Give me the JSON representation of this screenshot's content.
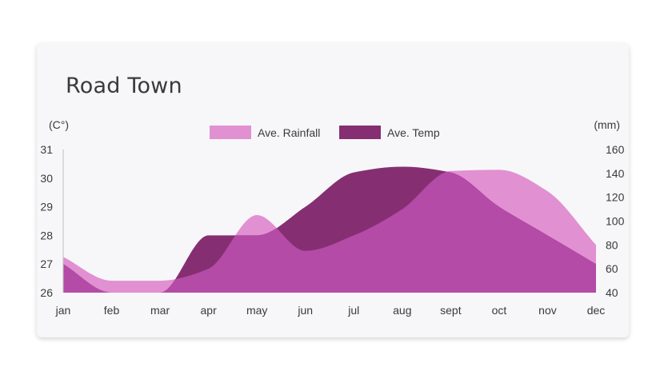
{
  "chart_data": {
    "type": "area",
    "title": "Road Town",
    "categories": [
      "jan",
      "feb",
      "mar",
      "apr",
      "may",
      "jun",
      "jul",
      "aug",
      "sept",
      "oct",
      "nov",
      "dec"
    ],
    "y_left": {
      "unit": "(C°)",
      "range": [
        26,
        31
      ],
      "ticks": [
        "26",
        "27",
        "28",
        "29",
        "30",
        "31"
      ]
    },
    "y_right": {
      "unit": "(mm)",
      "range": [
        40,
        160
      ],
      "ticks": [
        "40",
        "60",
        "80",
        "100",
        "120",
        "140",
        "160"
      ]
    },
    "legend_position": "top-center",
    "series": [
      {
        "name": "Ave. Rainfall",
        "axis": "right",
        "color": "#e190d2",
        "values": [
          70,
          50,
          50,
          60,
          105,
          75,
          88,
          110,
          142,
          143,
          125,
          80
        ]
      },
      {
        "name": "Ave. Temp",
        "axis": "left",
        "color": "#852f72",
        "values": [
          27.0,
          26.0,
          26.0,
          28.0,
          28.0,
          29.0,
          30.2,
          30.4,
          30.2,
          29.0,
          28.0,
          27.0
        ]
      }
    ],
    "overlap_color": "#b44ba6",
    "grid": false
  }
}
